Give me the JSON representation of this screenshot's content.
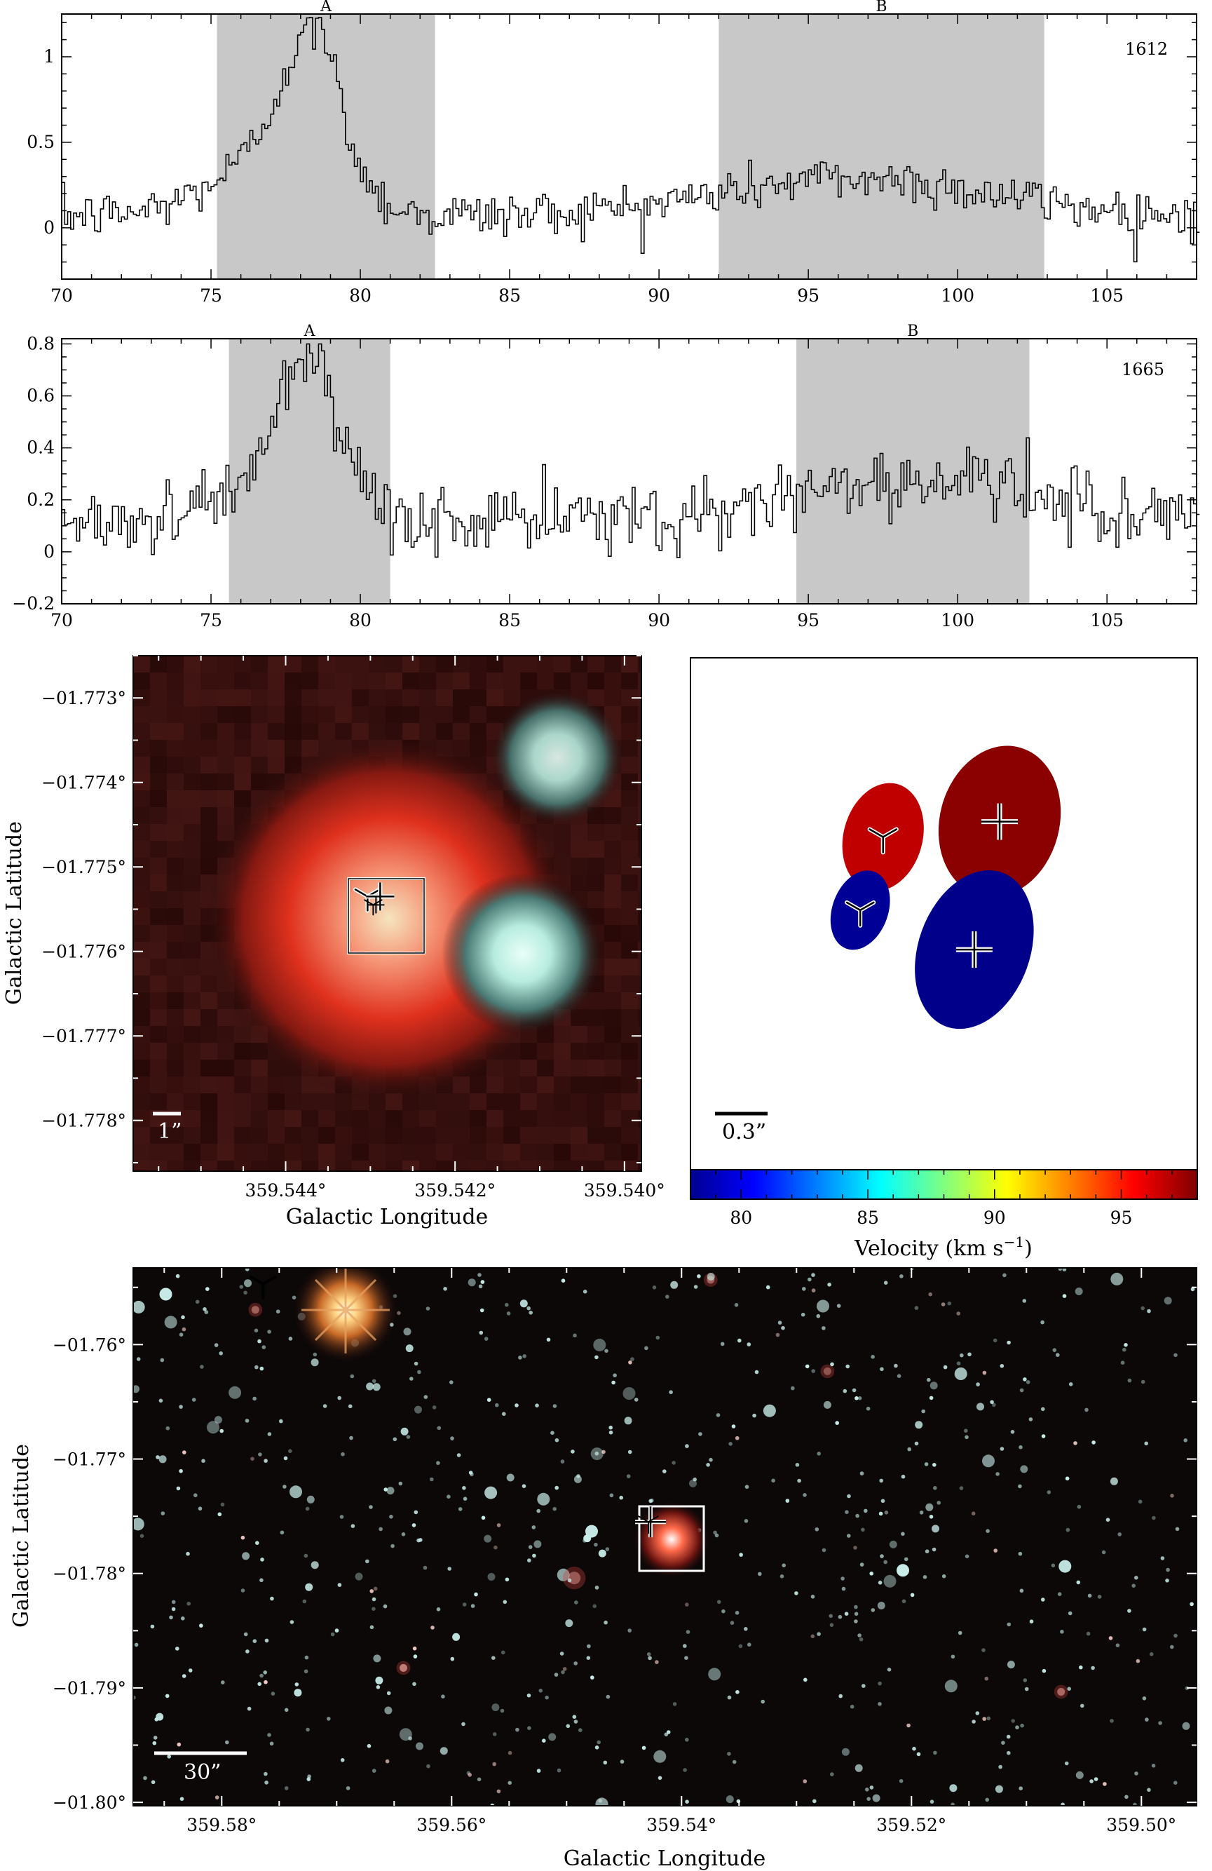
{
  "chart_data": [
    {
      "type": "line",
      "panel": "spectrum-1612",
      "annotation": "1612",
      "xlim": [
        70,
        108
      ],
      "ylim": [
        -0.3,
        1.25
      ],
      "xticks": [
        70,
        75,
        80,
        85,
        90,
        95,
        100,
        105
      ],
      "yticks": [
        0,
        0.5,
        1
      ],
      "ytick_labels": [
        "0",
        "0.5",
        "1"
      ],
      "regions": [
        {
          "label": "A",
          "x0": 75.2,
          "x1": 82.5
        },
        {
          "label": "B",
          "x0": 92.0,
          "x1": 102.9
        }
      ],
      "noise": 0.07,
      "features": [
        {
          "type": "gauss",
          "center": 78.3,
          "width": 1.0,
          "amp": 0.78
        },
        {
          "type": "gauss",
          "center": 77.0,
          "width": 2.0,
          "amp": 0.32
        },
        {
          "type": "gauss",
          "center": 78.8,
          "width": 0.25,
          "amp": 0.15
        },
        {
          "type": "gauss",
          "center": 96.5,
          "width": 4.5,
          "amp": 0.22
        }
      ],
      "baseline": 0.07,
      "style": "step"
    },
    {
      "type": "line",
      "panel": "spectrum-1665",
      "annotation": "1665",
      "xlim": [
        70,
        108
      ],
      "ylim": [
        -0.2,
        0.82
      ],
      "xticks": [
        70,
        75,
        80,
        85,
        90,
        95,
        100,
        105
      ],
      "yticks": [
        -0.2,
        0,
        0.2,
        0.4,
        0.6,
        0.8
      ],
      "ytick_labels": [
        "−0.2",
        "0",
        "0.2",
        "0.4",
        "0.6",
        "0.8"
      ],
      "regions": [
        {
          "label": "A",
          "x0": 75.6,
          "x1": 81.0
        },
        {
          "label": "B",
          "x0": 94.6,
          "x1": 102.4
        }
      ],
      "noise": 0.07,
      "features": [
        {
          "type": "gauss",
          "center": 78.2,
          "width": 0.8,
          "amp": 0.45
        },
        {
          "type": "gauss",
          "center": 77.3,
          "width": 1.8,
          "amp": 0.2
        },
        {
          "type": "gauss",
          "center": 98.5,
          "width": 4.0,
          "amp": 0.16
        }
      ],
      "baseline": 0.12,
      "style": "step"
    },
    {
      "type": "scatter",
      "panel": "image-zoom",
      "xlabel": "Galactic Longitude",
      "ylabel": "Galactic Latitude",
      "xlim": [
        359.5458,
        359.5398
      ],
      "ylim": [
        -1.7786,
        -1.7725
      ],
      "xticks": [
        359.544,
        359.542,
        359.54
      ],
      "xtick_labels": [
        "359.544°",
        "359.542°",
        "359.540°"
      ],
      "yticks": [
        -1.773,
        -1.774,
        -1.775,
        -1.776,
        -1.777,
        -1.778
      ],
      "ytick_labels": [
        "−01.773°",
        "−01.774°",
        "−01.775°",
        "−01.776°",
        "−01.777°",
        "−01.778°"
      ],
      "scalebar": "1”",
      "box": {
        "l": 359.5434,
        "b": -1.7758,
        "r": 359.5425,
        "t": -1.7749
      },
      "sources": [
        {
          "l": 359.5427,
          "b": -1.776,
          "type": "cyan"
        },
        {
          "l": 359.5414,
          "b": -1.774,
          "type": "cyan"
        },
        {
          "l": 359.543,
          "b": -1.7755,
          "type": "red"
        }
      ]
    },
    {
      "type": "scatter",
      "panel": "maser-map",
      "scalebar": "0.3”",
      "colorbar": {
        "label": "Velocity (km s",
        "label_exponent": "−1",
        "label_end": ")",
        "range": [
          78,
          98
        ],
        "ticks": [
          80,
          85,
          90,
          95
        ],
        "tick_labels": [
          "80",
          "85",
          "90",
          "95"
        ]
      },
      "spots": [
        {
          "cx": 0.38,
          "cy": 0.35,
          "rx": 0.078,
          "ry": 0.107,
          "angle": 15,
          "color": "#c00000",
          "marker": "tri"
        },
        {
          "cx": 0.61,
          "cy": 0.32,
          "rx": 0.118,
          "ry": 0.15,
          "angle": 15,
          "color": "#8b0000",
          "marker": "plus"
        },
        {
          "cx": 0.335,
          "cy": 0.493,
          "rx": 0.055,
          "ry": 0.08,
          "angle": 20,
          "color": "#000096",
          "marker": "tri"
        },
        {
          "cx": 0.56,
          "cy": 0.57,
          "rx": 0.11,
          "ry": 0.16,
          "angle": 20,
          "color": "#00008b",
          "marker": "plus"
        }
      ]
    },
    {
      "type": "scatter",
      "panel": "image-wide",
      "xlabel": "Galactic Longitude",
      "ylabel": "Galactic Latitude",
      "xlim": [
        359.5877,
        359.4952
      ],
      "ylim": [
        -1.8003,
        -1.7533
      ],
      "xticks": [
        359.58,
        359.56,
        359.54,
        359.52,
        359.5
      ],
      "xtick_labels": [
        "359.58°",
        "359.56°",
        "359.54°",
        "359.52°",
        "359.50°"
      ],
      "yticks": [
        -1.76,
        -1.77,
        -1.78,
        -1.79,
        -1.8
      ],
      "ytick_labels": [
        "−01.76°",
        "−01.77°",
        "−01.78°",
        "−01.79°",
        "−01.80°"
      ],
      "scalebar": "30”",
      "bright_star": {
        "l": 359.5764,
        "b": -1.7547
      },
      "target": {
        "l": 359.5427,
        "b": -1.7755
      },
      "box": {
        "l0": 359.5453,
        "l1": 359.54,
        "b0": -1.7725,
        "b1": -1.7783
      }
    }
  ],
  "colors": {
    "region_fill": "#c8c8c8",
    "frame": "#000000",
    "image_bg": "#0c0808",
    "red_source": "#e8321e",
    "cyan_source": "#c8f0ea"
  }
}
